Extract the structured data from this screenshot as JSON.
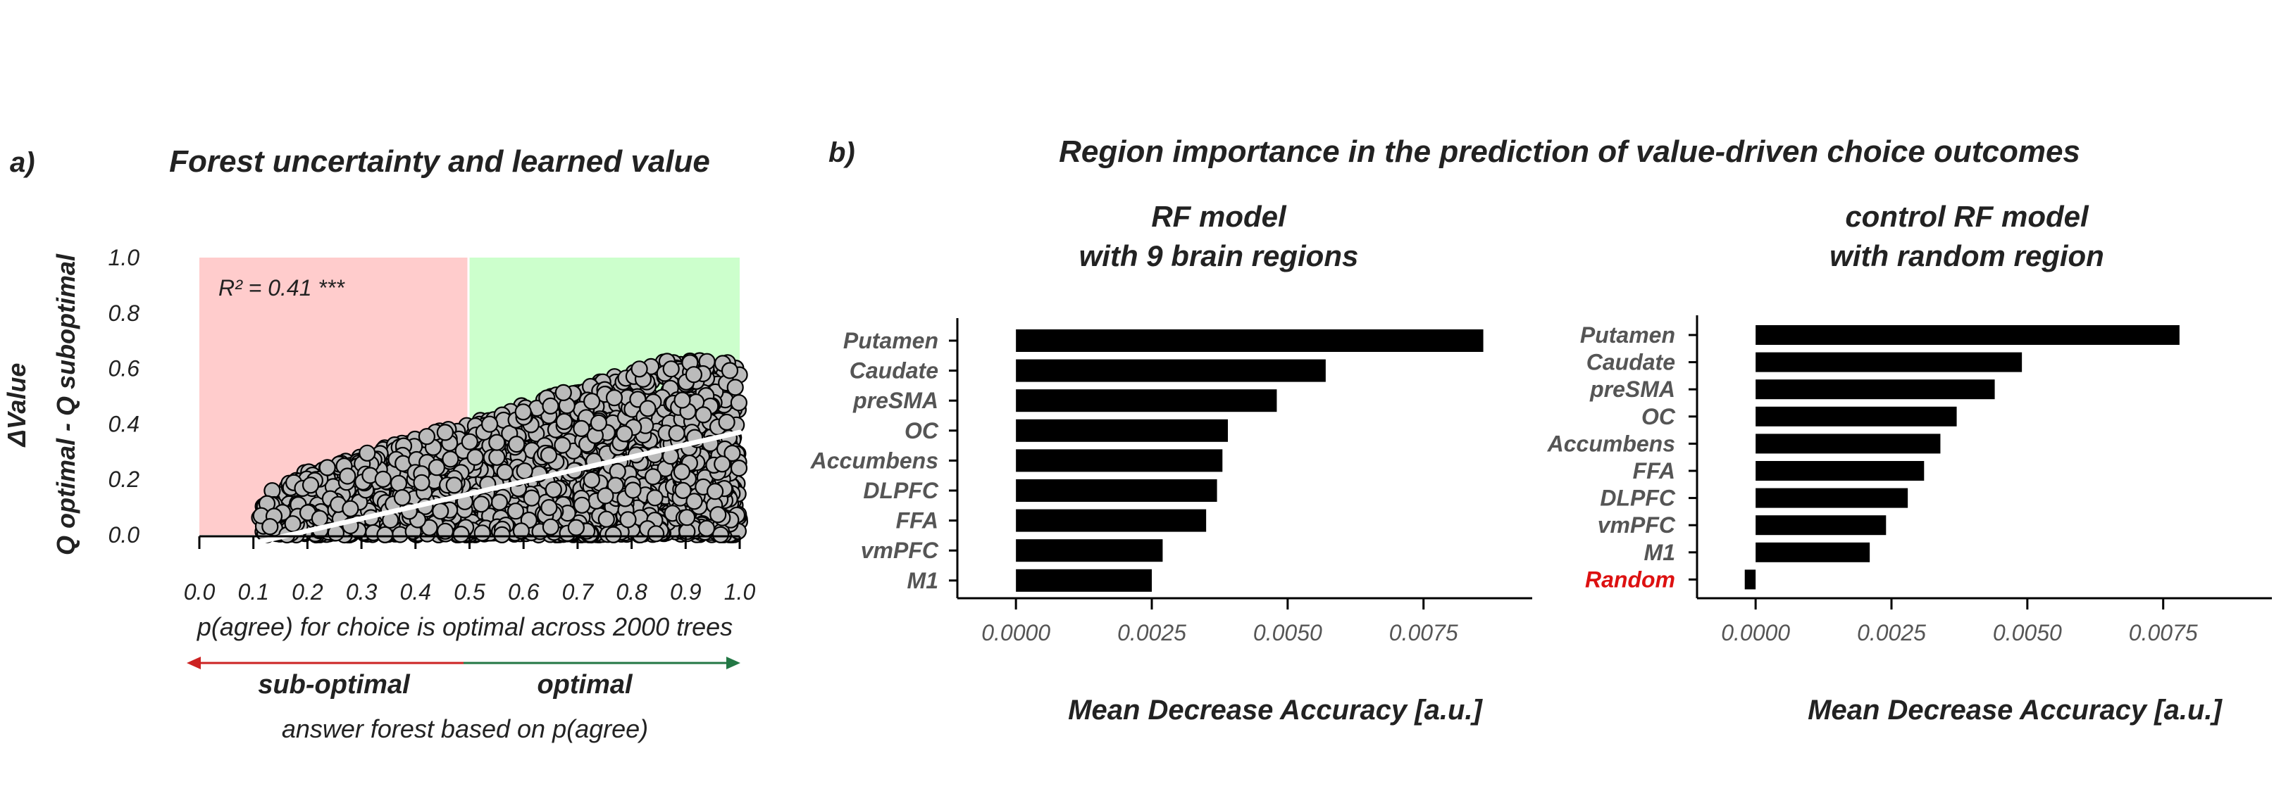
{
  "panel_a": {
    "label": "a)",
    "chart_data": {
      "type": "scatter",
      "title": "Forest uncertainty and learned value",
      "xlabel": "p(agree) for choice is optimal across 2000 trees",
      "ylabel_line1": "ΔValue",
      "ylabel_line2": "Q optimal - Q suboptimal",
      "xlim": [
        0.0,
        1.0
      ],
      "ylim": [
        0.0,
        1.0
      ],
      "x_ticks": [
        "0.0",
        "0.1",
        "0.2",
        "0.3",
        "0.4",
        "0.5",
        "0.6",
        "0.7",
        "0.8",
        "0.9",
        "1.0"
      ],
      "y_ticks": [
        "0.0",
        "0.2",
        "0.4",
        "0.6",
        "0.8",
        "1.0"
      ],
      "annotation": "R² = 0.41 ***",
      "regions": [
        {
          "x_range": [
            0.0,
            0.5
          ],
          "color": "#ffcccc"
        },
        {
          "x_range": [
            0.5,
            1.0
          ],
          "color": "#ccffcc"
        }
      ],
      "regression_line": {
        "x": [
          0.1,
          1.0
        ],
        "y": [
          -0.03,
          0.37
        ],
        "color": "#ffffff"
      },
      "point_color": "#bbbbbb",
      "point_count": 2400,
      "grid": false
    },
    "arrow": {
      "left_label": "sub-optimal",
      "right_label": "optimal",
      "caption": "answer forest based on p(agree)",
      "left_color": "#cc2222",
      "right_color": "#227744"
    }
  },
  "panel_b": {
    "label": "b)",
    "title": "Region importance in the prediction of value-driven choice outcomes",
    "charts": [
      {
        "type": "bar",
        "orientation": "horizontal",
        "title_line1": "RF model",
        "title_line2": "with 9 brain regions",
        "xlabel": "Mean Decrease Accuracy [a.u.]",
        "xlim": [
          -0.001,
          0.0095
        ],
        "x_ticks": [
          "0.0000",
          "0.0025",
          "0.0050",
          "0.0075"
        ],
        "categories": [
          "Putamen",
          "Caudate",
          "preSMA",
          "OC",
          "Accumbens",
          "DLPFC",
          "FFA",
          "vmPFC",
          "M1"
        ],
        "values": [
          0.0086,
          0.0057,
          0.0048,
          0.0039,
          0.0038,
          0.0037,
          0.0035,
          0.0027,
          0.0025
        ],
        "bar_color": "#000000"
      },
      {
        "type": "bar",
        "orientation": "horizontal",
        "title_line1": "control RF model",
        "title_line2": "with random region",
        "xlabel": "Mean Decrease Accuracy [a.u.]",
        "xlim": [
          -0.001,
          0.0095
        ],
        "x_ticks": [
          "0.0000",
          "0.0025",
          "0.0050",
          "0.0075"
        ],
        "categories": [
          "Putamen",
          "Caudate",
          "preSMA",
          "OC",
          "Accumbens",
          "FFA",
          "DLPFC",
          "vmPFC",
          "M1",
          "Random"
        ],
        "values": [
          0.0078,
          0.0049,
          0.0044,
          0.0037,
          0.0034,
          0.0031,
          0.0028,
          0.0024,
          0.0021,
          -0.0002
        ],
        "bar_color": "#000000",
        "highlight": {
          "category": "Random",
          "color": "#dd1111"
        }
      }
    ]
  }
}
